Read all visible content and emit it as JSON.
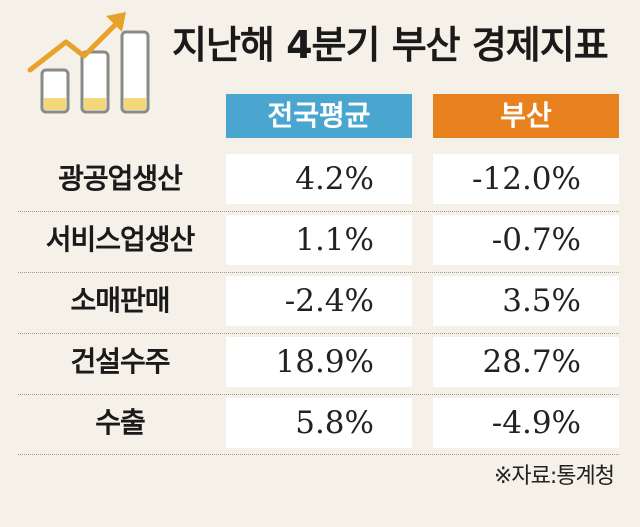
{
  "title": "지난해 4분기 부산 경제지표",
  "columns": {
    "national": "전국평균",
    "busan": "부산"
  },
  "rows": [
    {
      "label": "광공업생산",
      "national": "4.2%",
      "busan": "-12.0%"
    },
    {
      "label": "서비스업생산",
      "national": "1.1%",
      "busan": "-0.7%"
    },
    {
      "label": "소매판매",
      "national": "-2.4%",
      "busan": "3.5%"
    },
    {
      "label": "건설수주",
      "national": "18.9%",
      "busan": "28.7%"
    },
    {
      "label": "수출",
      "national": "5.8%",
      "busan": "-4.9%"
    }
  ],
  "source": "※자료:통계청",
  "colors": {
    "background": "#f5f1e8",
    "national_header": "#4aa6cf",
    "busan_header": "#e8821e",
    "icon_arrow": "#e8a12a",
    "icon_bar_fill": "#f3d77a"
  },
  "icon": "rising-bar-chart-with-arrow-icon"
}
